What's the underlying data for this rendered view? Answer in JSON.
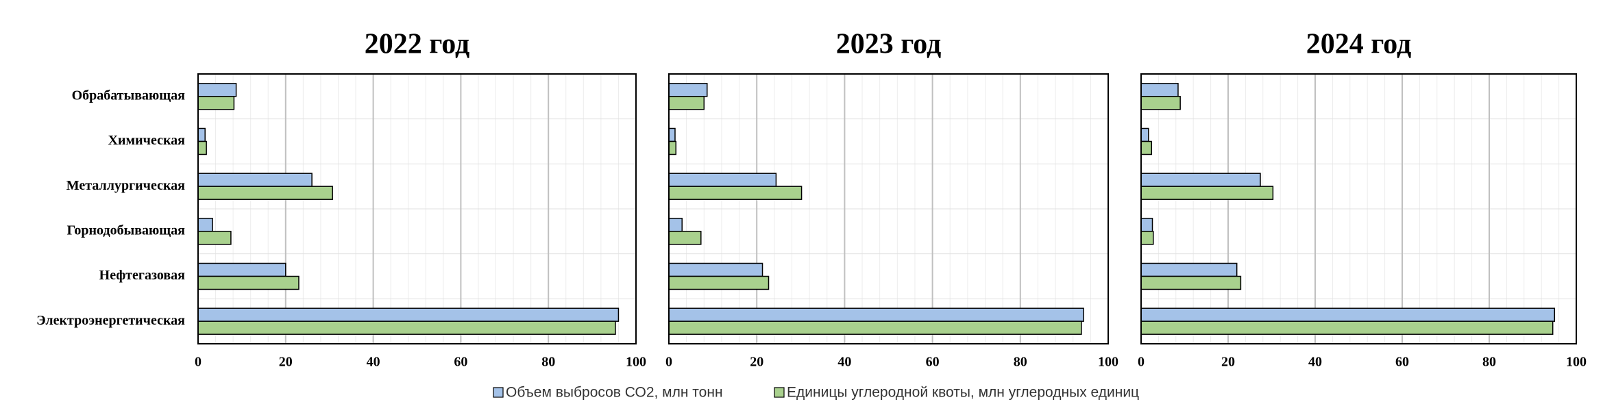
{
  "legend": [
    {
      "name": "Объем выбросов СО2, млн тонн",
      "color": "#a4c2e8"
    },
    {
      "name": "Единицы углеродной квоты, млн углеродных единиц",
      "color": "#a9d18e"
    }
  ],
  "chart_data": [
    {
      "type": "bar",
      "orientation": "horizontal",
      "title": "2022 год",
      "categories": [
        "Обрабатывающая",
        "Химическая",
        "Металлургическая",
        "Горнодобывающая",
        "Нефтегазовая",
        "Электроэнергетическая"
      ],
      "series": [
        {
          "values": [
            8.7,
            1.6,
            26,
            3.3,
            20,
            96
          ]
        },
        {
          "values": [
            8.2,
            1.9,
            30.7,
            7.5,
            23,
            95.3
          ]
        }
      ],
      "xlim": [
        0,
        100
      ],
      "xticks": [
        0,
        20,
        40,
        60,
        80,
        100
      ],
      "grid": true
    },
    {
      "type": "bar",
      "orientation": "horizontal",
      "title": "2023 год",
      "series": [
        {
          "values": [
            8.7,
            1.4,
            24.4,
            3,
            21.3,
            94.4
          ]
        },
        {
          "values": [
            8,
            1.6,
            30.2,
            7.3,
            22.7,
            93.9
          ]
        }
      ],
      "xlim": [
        0,
        100
      ],
      "xticks": [
        0,
        20,
        40,
        60,
        80,
        100
      ],
      "grid": true
    },
    {
      "type": "bar",
      "orientation": "horizontal",
      "title": "2024 год",
      "series": [
        {
          "values": [
            8.5,
            1.7,
            27.4,
            2.6,
            22,
            95
          ]
        },
        {
          "values": [
            9,
            2.4,
            30.3,
            2.8,
            22.9,
            94.6
          ]
        }
      ],
      "xlim": [
        0,
        100
      ],
      "xticks": [
        0,
        20,
        40,
        60,
        80,
        100
      ],
      "grid": true
    }
  ]
}
